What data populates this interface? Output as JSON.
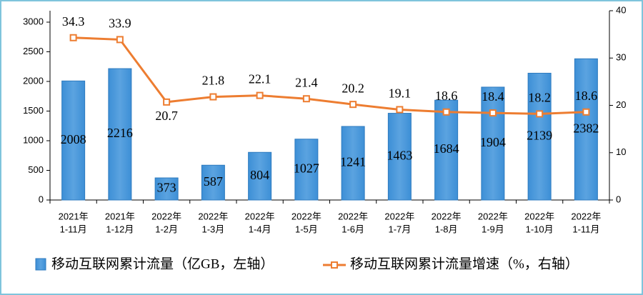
{
  "chart_data": {
    "type": "bar",
    "categories": [
      [
        "2021年",
        "1-11月"
      ],
      [
        "2021年",
        "1-12月"
      ],
      [
        "2022年",
        "1-2月"
      ],
      [
        "2022年",
        "1-3月"
      ],
      [
        "2022年",
        "1-4月"
      ],
      [
        "2022年",
        "1-5月"
      ],
      [
        "2022年",
        "1-6月"
      ],
      [
        "2022年",
        "1-7月"
      ],
      [
        "2022年",
        "1-8月"
      ],
      [
        "2022年",
        "1-9月"
      ],
      [
        "2022年",
        "1-10月"
      ],
      [
        "2022年",
        "1-11月"
      ]
    ],
    "series": [
      {
        "name": "移动互联网累计流量（亿GB，左轴）",
        "color": "#5ba3e0",
        "values": [
          2008,
          2216,
          373,
          587,
          804,
          1027,
          1241,
          1463,
          1684,
          1904,
          2139,
          2382
        ]
      },
      {
        "name": "移动互联网累计流量增速（%，右轴）",
        "color": "#ed7d31",
        "type": "line",
        "axis": "y2",
        "values": [
          34.3,
          33.9,
          20.7,
          21.8,
          22.1,
          21.4,
          20.2,
          19.1,
          18.6,
          18.4,
          18.2,
          18.6
        ]
      }
    ],
    "ylim": [
      0,
      3000
    ],
    "yticks": [
      0,
      500,
      1000,
      1500,
      2000,
      2500,
      3000
    ],
    "y2lim": [
      0,
      40
    ],
    "y2ticks": [
      0,
      10,
      20,
      30,
      40
    ]
  }
}
